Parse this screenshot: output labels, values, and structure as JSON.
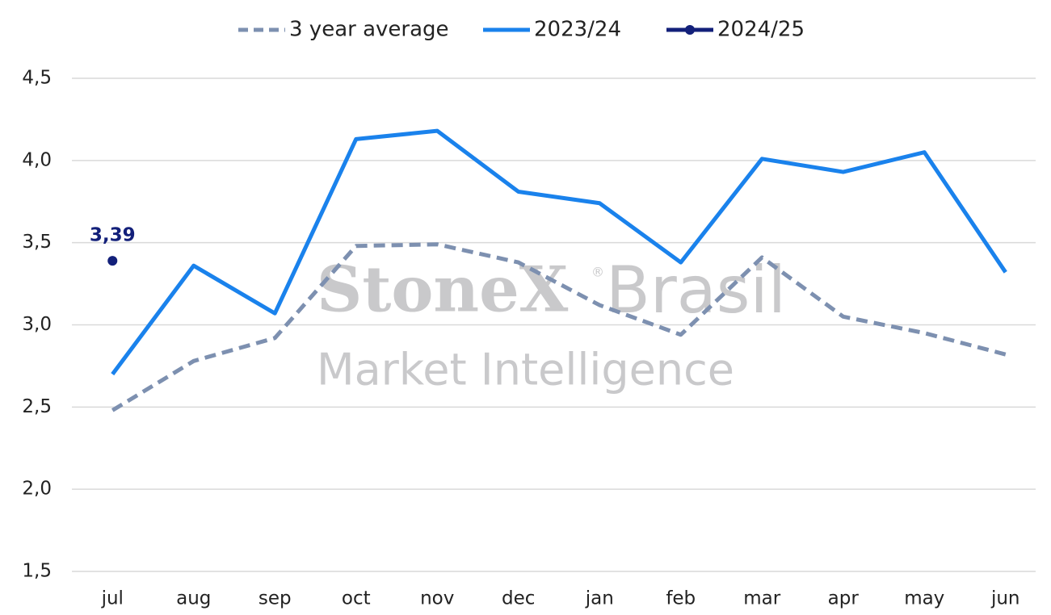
{
  "chart_data": {
    "type": "line",
    "categories": [
      "jul",
      "aug",
      "sep",
      "oct",
      "nov",
      "dec",
      "jan",
      "feb",
      "mar",
      "apr",
      "may",
      "jun"
    ],
    "series": [
      {
        "name": "3 year average",
        "color": "#7d90b0",
        "dashed": true,
        "values": [
          2.48,
          2.78,
          2.92,
          3.48,
          3.49,
          3.38,
          3.12,
          2.94,
          3.41,
          3.05,
          2.95,
          2.82
        ]
      },
      {
        "name": "2023/24",
        "color": "#1a82ec",
        "values": [
          2.7,
          3.36,
          3.07,
          4.13,
          4.18,
          3.81,
          3.74,
          3.38,
          4.01,
          3.93,
          4.05,
          3.32
        ]
      },
      {
        "name": "2024/25",
        "color": "#13207a",
        "marker": true,
        "values": [
          3.39,
          null,
          null,
          null,
          null,
          null,
          null,
          null,
          null,
          null,
          null,
          null
        ],
        "value_labels": [
          "3,39",
          null,
          null,
          null,
          null,
          null,
          null,
          null,
          null,
          null,
          null,
          null
        ]
      }
    ],
    "ylim": [
      1.5,
      4.5
    ],
    "yticks": [
      {
        "value": 1.5,
        "label": "1,5"
      },
      {
        "value": 2.0,
        "label": "2,0"
      },
      {
        "value": 2.5,
        "label": "2,5"
      },
      {
        "value": 3.0,
        "label": "3,0"
      },
      {
        "value": 3.5,
        "label": "3,5"
      },
      {
        "value": 4.0,
        "label": "4,0"
      },
      {
        "value": 4.5,
        "label": "4,5"
      }
    ],
    "grid": true,
    "legend": "top",
    "watermark": [
      "StoneX",
      "®",
      "Brasil",
      "Market Intelligence"
    ]
  }
}
